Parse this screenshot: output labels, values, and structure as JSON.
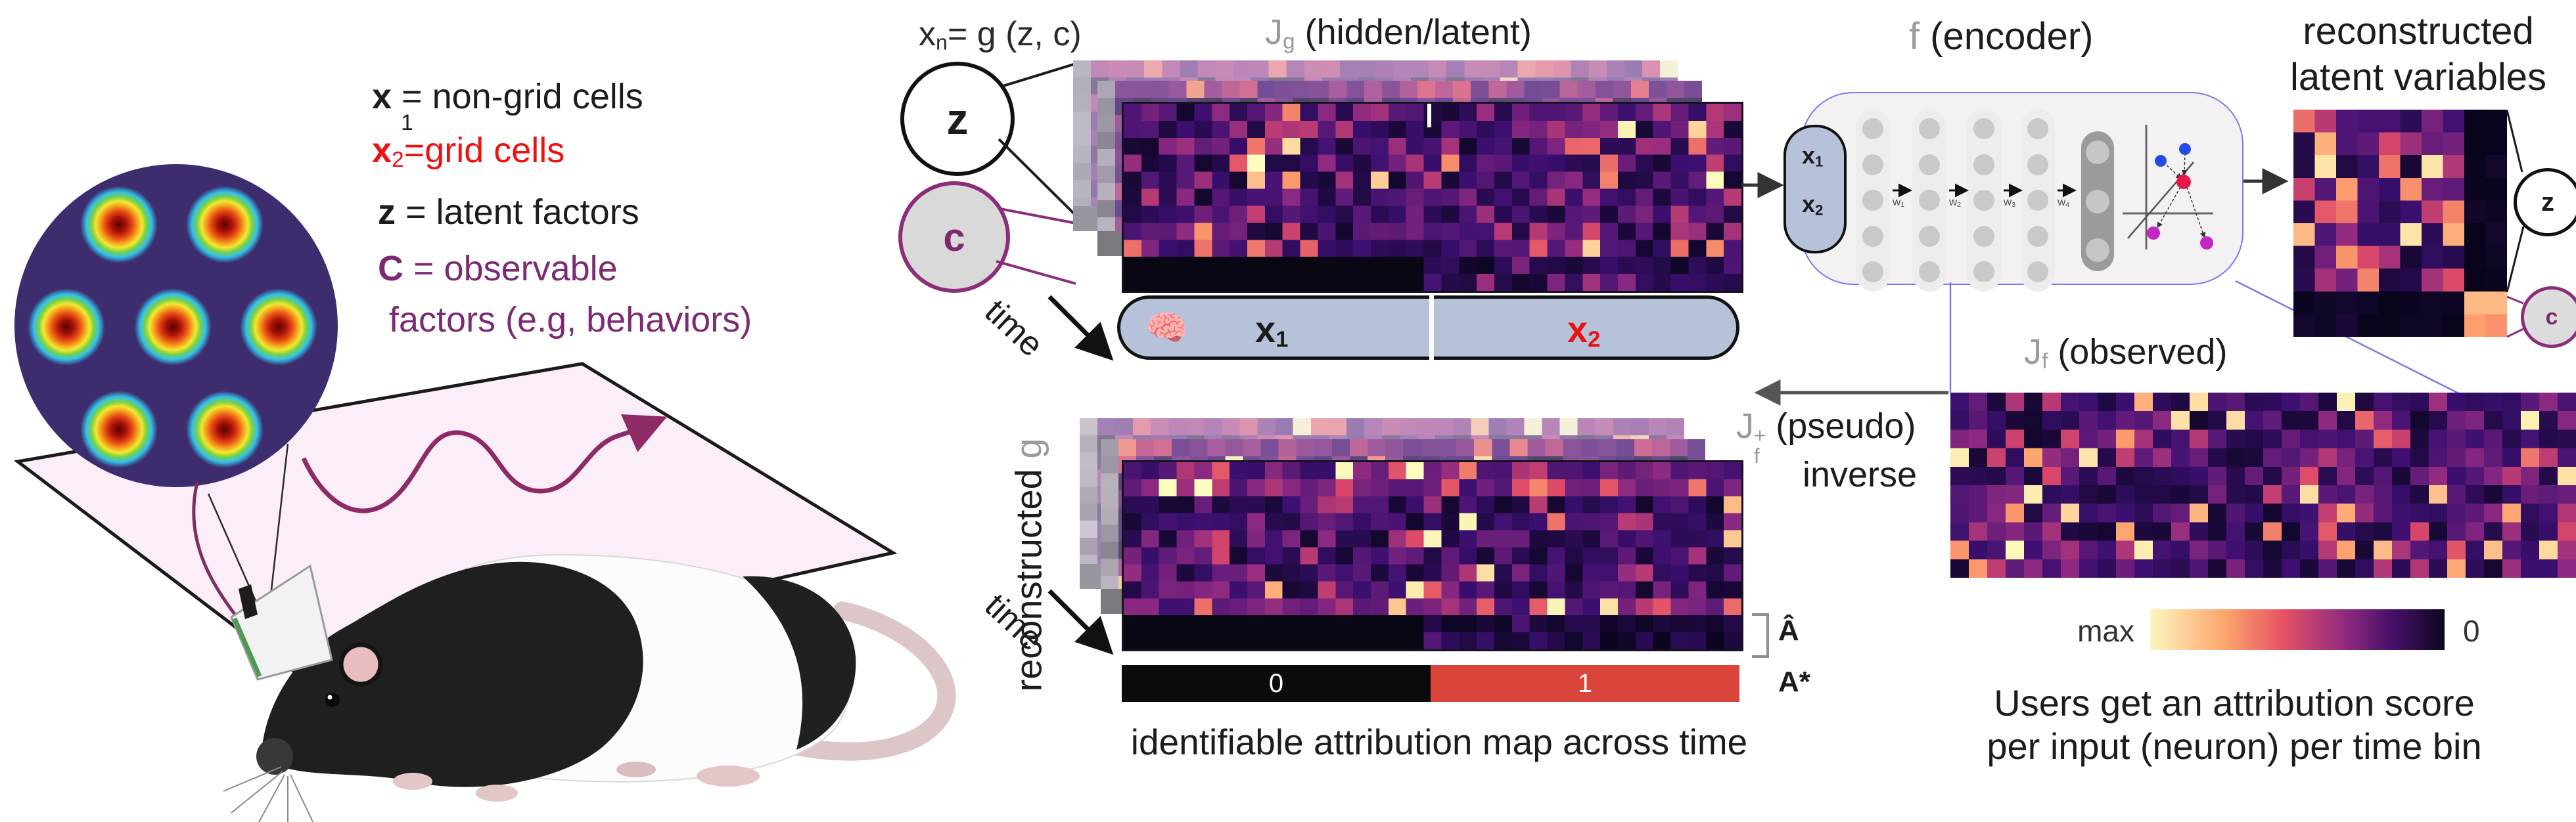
{
  "legend": {
    "l1_var": "x",
    "l1_sub": "1",
    "l1_rest": " = non-grid cells",
    "l2_var": "x",
    "l2_sub": "2",
    "l2_rest": "=grid cells",
    "l3_var": "z",
    "l3_rest": " = latent factors",
    "l4_var": "C",
    "l4_rest": " = observable",
    "l5": "factors (e.g, behaviors)"
  },
  "jg": {
    "formula_var": "x",
    "formula_sub": "n",
    "formula_rest": "= g (z, c)",
    "j": "J",
    "j_sub": "g",
    "j_rest": " (hidden/latent)",
    "z": "z",
    "c": "c",
    "time": "time"
  },
  "pill": {
    "brain": "🧠",
    "x1": "x",
    "x1_sub": "1",
    "x2": "x",
    "x2_sub": "2"
  },
  "encoder": {
    "f": "f",
    "f_rest": " (encoder)",
    "x1": "x",
    "x1_sub": "1",
    "x2": "x",
    "x2_sub": "2",
    "w": [
      {
        "b": "w",
        "s": "1"
      },
      {
        "b": "w",
        "s": "2"
      },
      {
        "b": "w",
        "s": "3"
      },
      {
        "b": "w",
        "s": "4"
      }
    ],
    "layer_units": [
      5,
      5,
      5,
      5
    ],
    "out_units": 3
  },
  "latent": {
    "t1": "reconstructed",
    "t2": "latent variables",
    "z": "z",
    "c": "c"
  },
  "jf": {
    "j": "J",
    "j_sub": "f",
    "j_rest": " (observed)"
  },
  "pseudo": {
    "j": "J",
    "sup": "+",
    "sub": "f",
    "rest": " (pseudo)",
    "l2": "inverse"
  },
  "recon": {
    "label": "reconstructed",
    "g": " g",
    "time": "time",
    "a_hat": "Â",
    "a_star": "A*",
    "zero": "0",
    "one": "1",
    "caption": "identifiable attribution map across time"
  },
  "colorbar": {
    "max": "max",
    "zero": "0"
  },
  "score_caption": {
    "l1": "Users get an attribution score",
    "l2": "per input (neuron) per time bin"
  },
  "colors": {
    "grid_circle_bg": "#3d2c6e",
    "c_purple": "#8c2d7c",
    "pill_fill": "#b6c2d9",
    "encoder_border": "#7b7af2",
    "astar_red": "#d9453a",
    "x2_red": "#ee1111",
    "trajectory_purple": "#8e2a66",
    "plane_pink": "#fbeef9"
  },
  "heatmaps": {
    "jg_back": {
      "kind": "back",
      "cols": 34,
      "rows": 10,
      "seed": 11,
      "fade": 0.5
    },
    "jg_mid": {
      "kind": "back",
      "cols": 34,
      "rows": 10,
      "seed": 22,
      "fade": 0.28
    },
    "jg_front": {
      "kind": "front",
      "cols": 35,
      "rows": 11,
      "band_rows": 2,
      "band_split": 0.5,
      "band_right_scale": 0.55,
      "seed": 33
    },
    "recon_back": {
      "kind": "back",
      "cols": 34,
      "rows": 10,
      "seed": 44,
      "fade": 0.5
    },
    "recon_mid": {
      "kind": "back",
      "cols": 34,
      "rows": 10,
      "seed": 55,
      "fade": 0.28
    },
    "recon_front": {
      "kind": "front",
      "cols": 35,
      "rows": 11,
      "band_rows": 2,
      "band_split": 0.5,
      "band_right_scale": 0.4,
      "hot_rows": true,
      "seed": 66
    },
    "jf": {
      "kind": "plain",
      "cols": 34,
      "rows": 10,
      "seed": 77
    },
    "latent": {
      "kind": "latent",
      "cols": 10,
      "rows": 10,
      "seed": 88
    }
  }
}
